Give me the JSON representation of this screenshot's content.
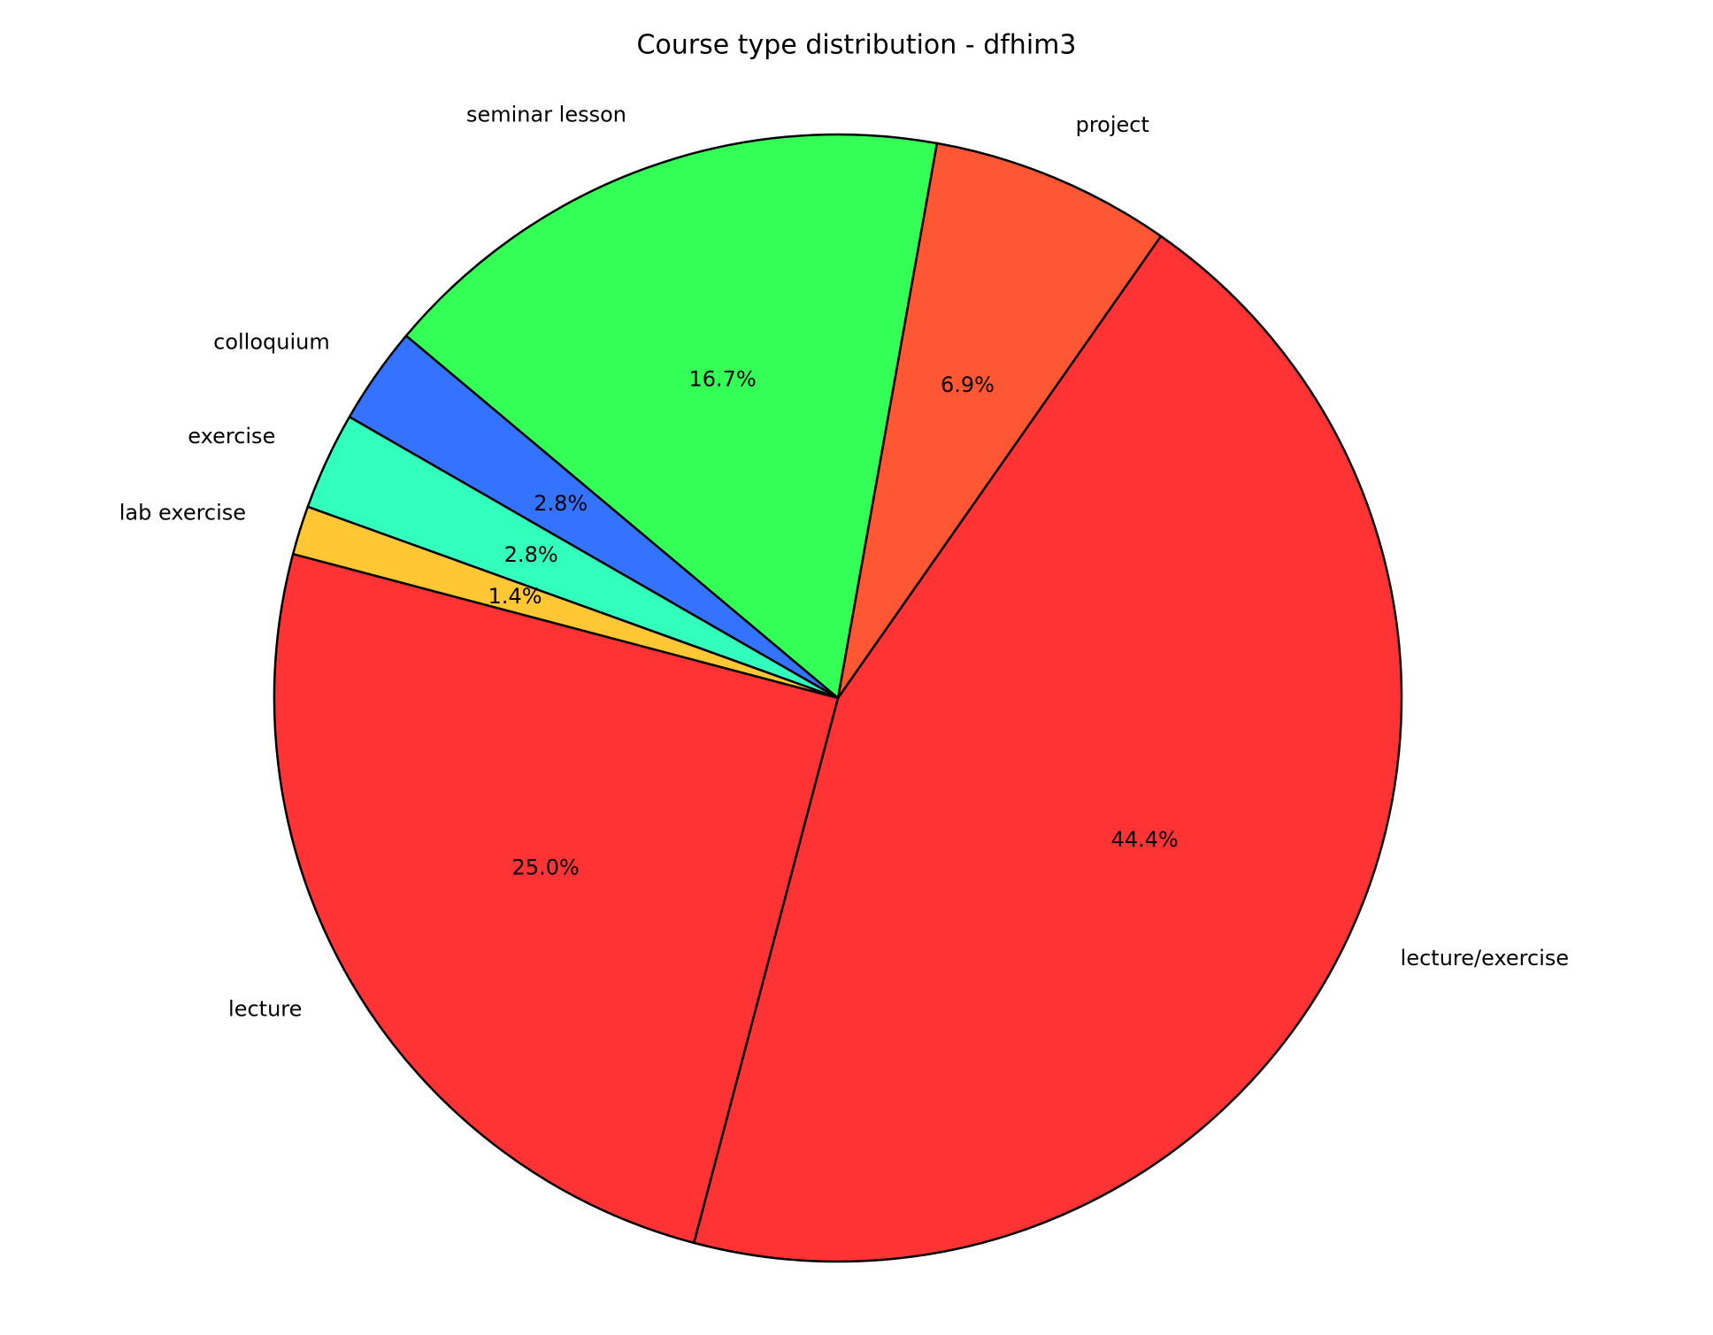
{
  "chart_data": {
    "type": "pie",
    "title": "Course type distribution - dfhim3",
    "categories": [
      "lecture/exercise",
      "project",
      "seminar lesson",
      "colloquium",
      "exercise",
      "lab exercise",
      "lecture"
    ],
    "values": [
      44.4,
      6.9,
      16.7,
      2.8,
      2.8,
      1.4,
      25.0
    ],
    "value_labels": [
      "44.4%",
      "6.9%",
      "16.7%",
      "2.8%",
      "2.8%",
      "1.4%",
      "25.0%"
    ],
    "colors": [
      "#ff3333",
      "#ff5733",
      "#33ff57",
      "#3373ff",
      "#33ffbd",
      "#ffc733",
      "#ff3333"
    ]
  }
}
